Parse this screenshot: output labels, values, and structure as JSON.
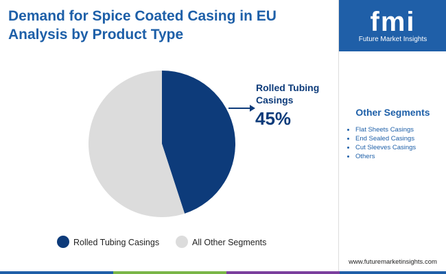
{
  "chart_data": {
    "type": "pie",
    "title": "Demand for Spice Coated Casing in EU Analysis by Product Type",
    "categories": [
      "Rolled Tubing Casings",
      "All Other Segments"
    ],
    "values": [
      45,
      55
    ],
    "value_labels": [
      "45%",
      null
    ],
    "colors": [
      "#0d3b7a",
      "#dcdcdc"
    ]
  },
  "panel": {
    "title": "Other Segments",
    "items": [
      "Flat Sheets Casings",
      "End Sealed Casings",
      "Cut Sleeves Casings",
      "Others"
    ]
  },
  "logo": {
    "mark": "fmi",
    "name": "Future Market Insights"
  },
  "footer": "www.futuremarketinsights.com"
}
